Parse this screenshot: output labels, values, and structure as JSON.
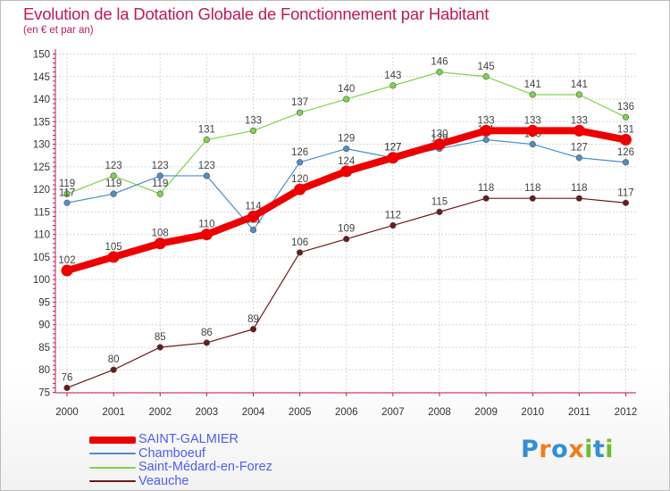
{
  "chart_data": {
    "type": "line",
    "title": "Evolution de la Dotation Globale de Fonctionnement par Habitant",
    "subtitle": "(en € et par an)",
    "xlabel": "",
    "ylabel": "",
    "ylim": [
      75,
      150
    ],
    "yticks": [
      75,
      80,
      85,
      90,
      95,
      100,
      105,
      110,
      115,
      120,
      125,
      130,
      135,
      140,
      145,
      150
    ],
    "grid": true,
    "legend_position": "bottom-left",
    "categories": [
      "2000",
      "2001",
      "2002",
      "2003",
      "2004",
      "2005",
      "2006",
      "2007",
      "2008",
      "2009",
      "2010",
      "2011",
      "2012"
    ],
    "series": [
      {
        "name": "Saint-Médard-en-Forez",
        "color": "#7ed44a",
        "values": [
          119,
          123,
          119,
          131,
          133,
          137,
          140,
          143,
          146,
          145,
          141,
          141,
          136
        ]
      },
      {
        "name": "Chamboeuf",
        "color": "#4d8fcc",
        "values": [
          117,
          119,
          123,
          123,
          111,
          126,
          129,
          127,
          129,
          131,
          130,
          127,
          126
        ]
      },
      {
        "name": "Veauche",
        "color": "#6b1a1a",
        "values": [
          76,
          80,
          85,
          86,
          89,
          106,
          109,
          112,
          115,
          118,
          118,
          118,
          117
        ]
      },
      {
        "name": "SAINT-GALMIER",
        "color": "#ee0000",
        "values": [
          102,
          105,
          108,
          110,
          114,
          120,
          124,
          127,
          130,
          133,
          133,
          133,
          131
        ]
      }
    ]
  },
  "legend": {
    "items": [
      {
        "label": "SAINT-GALMIER",
        "color": "#ee0000"
      },
      {
        "label": "Chamboeuf",
        "color": "#4d8fcc"
      },
      {
        "label": "Saint-Médard-en-Forez",
        "color": "#7ed44a"
      },
      {
        "label": "Veauche",
        "color": "#6b1a1a"
      }
    ]
  },
  "logo": {
    "text": "Proxiti",
    "letters": [
      {
        "ch": "P",
        "color": "#2f8fd9"
      },
      {
        "ch": "r",
        "color": "#f07c1b"
      },
      {
        "ch": "o",
        "color": "#2f8fd9"
      },
      {
        "ch": "x",
        "color": "#f07c1b"
      },
      {
        "ch": "i",
        "color": "#6fbf2a"
      },
      {
        "ch": "t",
        "color": "#2f8fd9"
      },
      {
        "ch": "i",
        "color": "#6fbf2a"
      }
    ]
  }
}
